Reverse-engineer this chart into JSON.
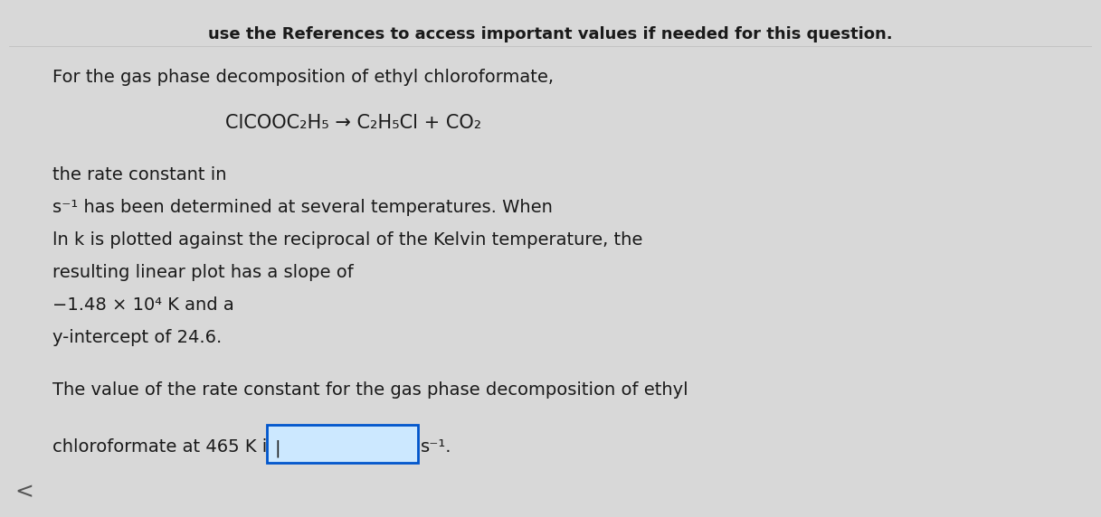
{
  "background_color": "#d8d8d8",
  "header_text": "use the References to access important values if needed for this question.",
  "line1": "For the gas phase decomposition of ethyl chloroformate,",
  "equation": "ClCOOC₂H₅ → C₂H₅Cl + CO₂",
  "body_line1": "the rate constant in",
  "body_line2": "s⁻¹ has been determined at several temperatures. When",
  "body_line3": "ln k is plotted against the reciprocal of the Kelvin temperature, the",
  "body_line4": "resulting linear plot has a slope of",
  "body_line5": "−1.48 × 10⁴ K and a",
  "body_line6": "y-intercept of 24.6.",
  "footer_line1": "The value of the rate constant for the gas phase decomposition of ethyl",
  "footer_line2_pre": "chloroformate at 465 K is ",
  "footer_line2_post": "s⁻¹.",
  "input_box_color": "#cce8ff",
  "input_box_border": "#0055cc",
  "text_color": "#1a1a1a",
  "font_size_header": 13,
  "font_size_body": 14,
  "font_size_equation": 15,
  "left_arrow": "<",
  "left_arrow_color": "#555555"
}
